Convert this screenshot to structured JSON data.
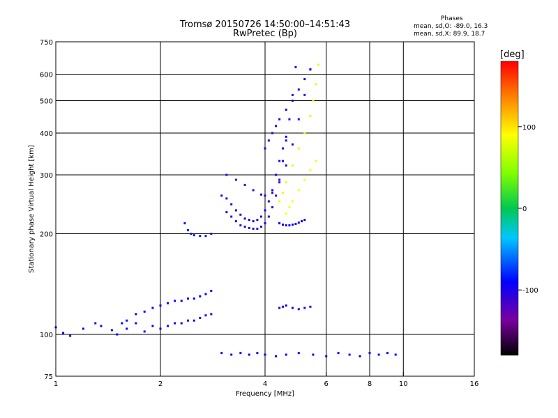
{
  "title_line1": "Tromsø 20150726 14:50:00–14:51:43",
  "title_line2": "RwPretec (Bp)",
  "stats": {
    "heading": "Phases",
    "o_line": "mean, sd,O: -89.0, 16.3",
    "x_line": "mean, sd,X:  89.9, 18.7"
  },
  "colorbar": {
    "label": "[deg]",
    "ticks": [
      {
        "value": 100,
        "label": "100"
      },
      {
        "value": 0,
        "label": "0"
      },
      {
        "value": -100,
        "label": "-100"
      }
    ],
    "range": [
      -180,
      180
    ]
  },
  "chart_data": {
    "type": "scatter",
    "xlabel": "Frequency [MHz]",
    "ylabel": "Stationary phase Virtual Height [km]",
    "xscale": "log",
    "yscale": "log",
    "xlim": [
      1,
      16
    ],
    "ylim": [
      75,
      750
    ],
    "xticks": [
      1,
      2,
      4,
      6,
      8,
      10,
      16
    ],
    "yticks": [
      75,
      100,
      200,
      300,
      400,
      500,
      600,
      750
    ],
    "xgrid": [
      2,
      4,
      6,
      8,
      10
    ],
    "ygrid": [
      100,
      200,
      300,
      400,
      500,
      600
    ],
    "color_by": "phase [deg]",
    "series": [
      {
        "x": [
          1.0,
          1.05,
          1.1,
          1.2,
          1.3,
          1.35,
          1.45,
          1.5,
          1.6,
          1.7,
          1.8,
          1.9,
          2.0,
          2.1,
          2.2,
          2.3,
          2.4,
          2.5,
          2.6,
          2.7,
          2.8
        ],
        "y": [
          105,
          101,
          99,
          104,
          108,
          106,
          103,
          100,
          104,
          108,
          102,
          106,
          104,
          106,
          108,
          108,
          110,
          110,
          112,
          114,
          115
        ],
        "phase": -95
      },
      {
        "x": [
          1.55,
          1.6,
          1.7,
          1.8,
          1.9,
          2.0,
          2.1,
          2.2,
          2.3,
          2.4,
          2.5,
          2.6,
          2.7,
          2.8
        ],
        "y": [
          108,
          110,
          115,
          117,
          120,
          122,
          124,
          126,
          126,
          128,
          128,
          130,
          132,
          135
        ],
        "phase": -90
      },
      {
        "x": [
          2.35,
          2.4,
          2.45,
          2.5,
          2.6,
          2.7,
          2.8
        ],
        "y": [
          215,
          205,
          200,
          198,
          197,
          197,
          200
        ],
        "phase": -85
      },
      {
        "x": [
          3.0,
          3.1,
          3.2,
          3.3,
          3.4,
          3.5,
          3.6,
          3.7,
          3.8,
          3.9,
          4.0,
          4.1,
          4.2,
          4.3,
          4.4,
          4.5,
          4.6
        ],
        "y": [
          260,
          255,
          245,
          235,
          228,
          222,
          220,
          218,
          220,
          225,
          235,
          250,
          270,
          300,
          330,
          360,
          390
        ],
        "phase": -100
      },
      {
        "x": [
          3.1,
          3.2,
          3.3,
          3.4,
          3.5,
          3.6,
          3.7,
          3.8,
          3.9,
          4.0,
          4.1,
          4.2,
          4.3,
          4.4,
          4.5,
          4.6,
          4.7,
          4.8,
          4.9
        ],
        "y": [
          232,
          225,
          218,
          212,
          210,
          208,
          207,
          207,
          210,
          215,
          225,
          240,
          260,
          290,
          330,
          380,
          440,
          520,
          630
        ],
        "phase": -105
      },
      {
        "x": [
          3.1,
          3.3,
          3.5,
          3.7,
          3.9,
          4.0,
          4.2,
          4.4,
          4.6,
          4.8,
          5.0,
          5.2,
          5.4
        ],
        "y": [
          300,
          290,
          280,
          270,
          262,
          260,
          265,
          285,
          320,
          370,
          440,
          520,
          620
        ],
        "phase": -110
      },
      {
        "x": [
          4.0,
          4.1,
          4.2,
          4.3,
          4.4,
          4.6,
          4.8,
          5.0,
          5.2,
          5.4
        ],
        "y": [
          360,
          380,
          400,
          420,
          440,
          470,
          500,
          540,
          580,
          620
        ],
        "phase": -100
      },
      {
        "x": [
          4.4,
          4.5,
          4.6,
          4.7,
          4.8,
          4.9,
          5.0,
          5.1,
          5.2
        ],
        "y": [
          215,
          213,
          212,
          212,
          213,
          214,
          216,
          218,
          220
        ],
        "phase": -95
      },
      {
        "x": [
          4.4,
          4.5,
          4.6,
          4.8,
          5.0,
          5.2,
          5.4,
          5.5,
          5.6,
          5.7
        ],
        "y": [
          250,
          265,
          285,
          320,
          360,
          400,
          450,
          500,
          560,
          640
        ],
        "phase": 95
      },
      {
        "x": [
          4.6,
          4.7,
          4.8,
          5.0,
          5.2,
          5.4,
          5.6
        ],
        "y": [
          230,
          240,
          250,
          270,
          290,
          310,
          330
        ],
        "phase": 90
      },
      {
        "x": [
          4.4,
          4.5,
          4.6,
          4.8,
          5.0,
          5.2,
          5.4
        ],
        "y": [
          120,
          121,
          122,
          120,
          119,
          120,
          121
        ],
        "phase": -95
      },
      {
        "x": [
          3.0,
          3.2,
          3.4,
          3.6,
          3.8,
          4.0,
          4.3,
          4.6,
          5.0,
          5.5,
          6.0,
          6.5,
          7.0,
          7.5,
          8.0,
          8.5,
          9.0,
          9.5
        ],
        "y": [
          88,
          87,
          88,
          87,
          88,
          87,
          86,
          87,
          88,
          87,
          86,
          88,
          87,
          86,
          88,
          87,
          88,
          87
        ],
        "phase": -90
      }
    ]
  }
}
